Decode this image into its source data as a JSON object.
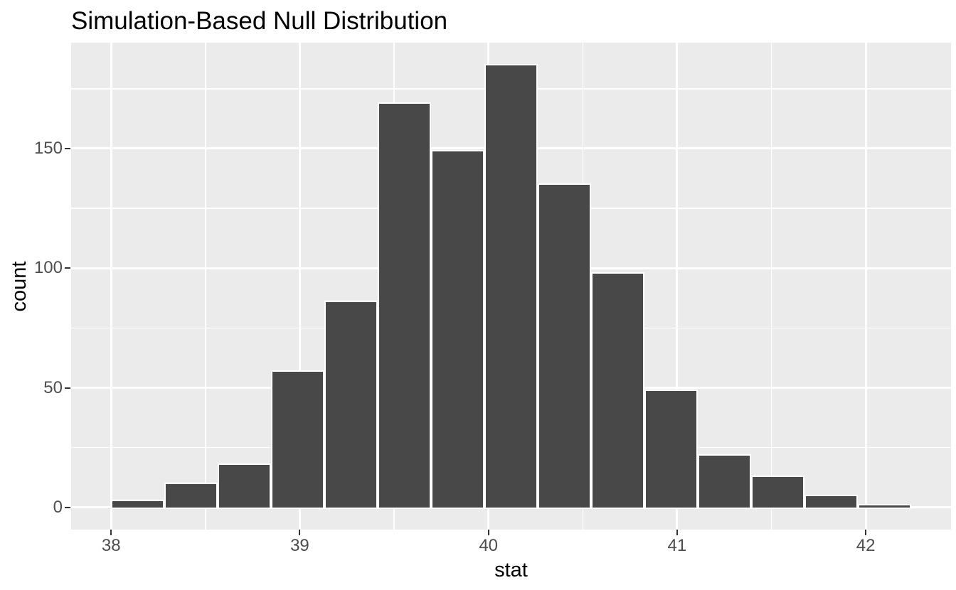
{
  "chart_data": {
    "type": "bar",
    "subtype": "histogram",
    "title": "Simulation-Based Null Distribution",
    "xlabel": "stat",
    "ylabel": "count",
    "bin_start": 38.0,
    "bin_width": 0.2827,
    "counts": [
      3,
      10,
      18,
      57,
      86,
      169,
      149,
      185,
      135,
      98,
      49,
      22,
      13,
      5,
      1
    ],
    "total_reps": 1000,
    "x_ticks": [
      38,
      39,
      40,
      41,
      42
    ],
    "x_minor_gridlines": [
      38.5,
      39.5,
      40.5,
      41.5
    ],
    "y_ticks": [
      0,
      50,
      100,
      150
    ],
    "y_minor_gridlines": [
      25,
      75,
      125,
      175
    ],
    "xlim": [
      37.788,
      42.452
    ],
    "ylim": [
      -9.25,
      194.25
    ],
    "grid": true,
    "legend_position": "none",
    "colors": {
      "bar_fill": "#484848",
      "bar_stroke": "#FFFFFF",
      "panel_background": "#EBEBEB",
      "gridline": "#FFFFFF",
      "tick_mark": "#333333",
      "tick_label": "#4D4D4D",
      "title_text": "#000000"
    }
  }
}
